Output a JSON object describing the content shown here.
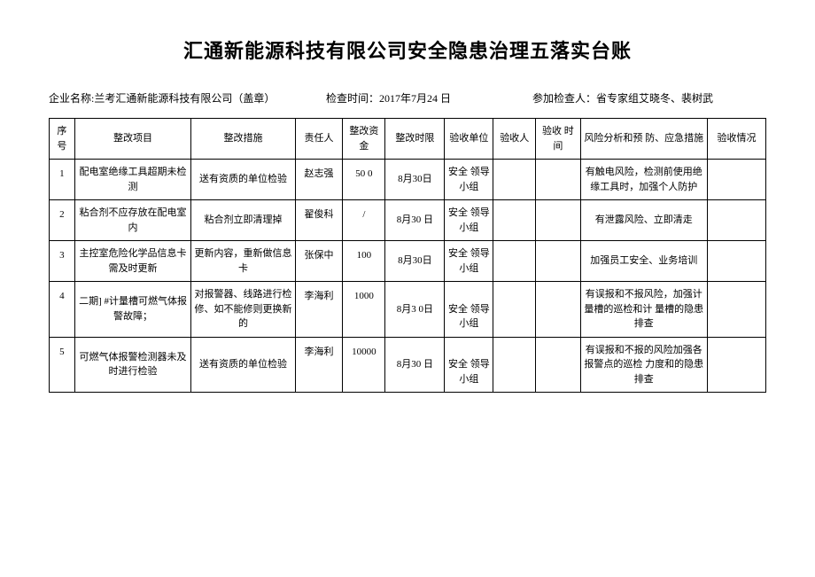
{
  "title": "汇通新能源科技有限公司安全隐患治理五落实台账",
  "meta": {
    "company_label": "企业名称:",
    "company": "兰考汇通新能源科技有限公司（盖章）",
    "inspect_time_label": "检查时间：",
    "inspect_time": "2017年7月24 日",
    "inspectors_label": "参加检查人：",
    "inspectors": "省专家组艾晓冬、裴树武"
  },
  "columns": [
    "序号",
    "整改项目",
    "整改措施",
    "责任人",
    "整改资金",
    "整改时限",
    "验收单位",
    "验收人",
    "验收 时间",
    "风险分析和预 防、应急措施",
    "验收情况"
  ],
  "rows": [
    {
      "idx": "1",
      "project": "配电室绝缘工具超期未检测",
      "measure": "送有资质的单位检验",
      "person": "赵志强",
      "fund": "50 0",
      "deadline": "8月30日",
      "unit": "安全 领导 小组",
      "acceptor": "",
      "acc_time": "",
      "risk": "有触电风险，检测前使用绝缘工具时，加强个人防护",
      "status": ""
    },
    {
      "idx": "2",
      "project": "粘合剂不应存放在配电室内",
      "measure": "粘合剂立即清理掉",
      "person": "翟俊科",
      "fund": "/",
      "deadline": "8月30 日",
      "unit": "安全 领导 小组",
      "acceptor": "",
      "acc_time": "",
      "risk": "有泄露风险、立即清走",
      "status": ""
    },
    {
      "idx": "3",
      "project": "主控室危险化学品信息卡需及时更新",
      "measure": "更新内容，重新做信息卡",
      "person": "张保中",
      "fund": "100",
      "deadline": "8月30日",
      "unit": "安全 领导 小组",
      "acceptor": "",
      "acc_time": "",
      "risk": "加强员工安全、业务培训",
      "status": ""
    },
    {
      "idx": "4",
      "project": "二期] #计量槽可燃气体报警故障；",
      "measure": "对报警器、线路进行检修、如不能修则更换新的",
      "person": "李海利",
      "fund": "1000",
      "deadline": "8月3 0日",
      "unit": "安全 领导 小组",
      "acceptor": "",
      "acc_time": "",
      "risk": "有误报和不报风险，加强计量槽的巡检和计 量槽的隐患排查",
      "status": ""
    },
    {
      "idx": "5",
      "project": "可燃气体报警检测器未及时进行检验",
      "measure": "送有资质的单位检验",
      "person": "李海利",
      "fund": "10000",
      "deadline": "8月30 日",
      "unit": "安全 领导 小组",
      "acceptor": "",
      "acc_time": "",
      "risk": "有误报和不报的风险加强各报警点的巡检 力度和的隐患排查",
      "status": ""
    }
  ]
}
